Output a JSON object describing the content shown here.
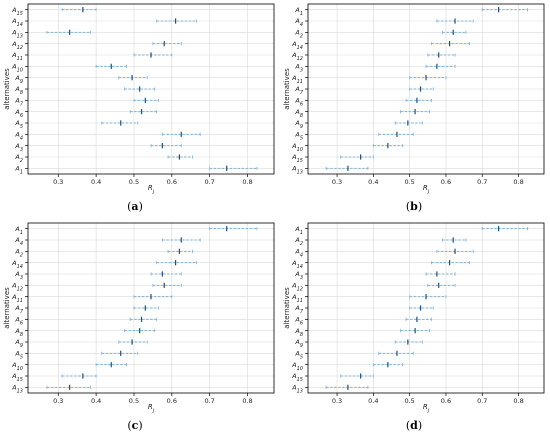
{
  "chart_data": [
    {
      "type": "scatter",
      "caption": "(a)",
      "xlabel": "R_j",
      "ylabel": "alternatives",
      "xlim": [
        0.22,
        0.87
      ],
      "xticks": [
        "0.3",
        "0.4",
        "0.5",
        "0.6",
        "0.7",
        "0.8"
      ],
      "grid": true,
      "categories": [
        "A15",
        "A14",
        "A13",
        "A12",
        "A11",
        "A10",
        "A9",
        "A8",
        "A7",
        "A6",
        "A5",
        "A4",
        "A3",
        "A2",
        "A1"
      ],
      "values": [
        0.365,
        0.61,
        0.33,
        0.58,
        0.545,
        0.44,
        0.495,
        0.515,
        0.53,
        0.52,
        0.465,
        0.625,
        0.575,
        0.62,
        0.745
      ],
      "lower": [
        0.31,
        0.56,
        0.27,
        0.55,
        0.5,
        0.4,
        0.46,
        0.475,
        0.5,
        0.49,
        0.415,
        0.575,
        0.545,
        0.59,
        0.7
      ],
      "upper": [
        0.4,
        0.665,
        0.385,
        0.625,
        0.6,
        0.48,
        0.535,
        0.555,
        0.565,
        0.56,
        0.51,
        0.675,
        0.625,
        0.655,
        0.825
      ]
    },
    {
      "type": "scatter",
      "caption": "(b)",
      "xlabel": "R_j",
      "ylabel": "alternatives",
      "xlim": [
        0.22,
        0.87
      ],
      "xticks": [
        "0.3",
        "0.4",
        "0.5",
        "0.6",
        "0.7",
        "0.8"
      ],
      "grid": true,
      "categories": [
        "A1",
        "A4",
        "A2",
        "A14",
        "A12",
        "A3",
        "A11",
        "A7",
        "A6",
        "A8",
        "A9",
        "A5",
        "A10",
        "A15",
        "A13"
      ],
      "values": [
        0.745,
        0.625,
        0.62,
        0.61,
        0.58,
        0.575,
        0.545,
        0.53,
        0.52,
        0.515,
        0.495,
        0.465,
        0.44,
        0.365,
        0.33
      ],
      "lower": [
        0.7,
        0.575,
        0.59,
        0.56,
        0.55,
        0.545,
        0.5,
        0.5,
        0.49,
        0.475,
        0.46,
        0.415,
        0.4,
        0.31,
        0.27
      ],
      "upper": [
        0.825,
        0.675,
        0.655,
        0.665,
        0.625,
        0.625,
        0.6,
        0.565,
        0.56,
        0.555,
        0.535,
        0.51,
        0.48,
        0.4,
        0.385
      ]
    },
    {
      "type": "scatter",
      "caption": "(c)",
      "xlabel": "R_j",
      "ylabel": "alternatives",
      "xlim": [
        0.22,
        0.87
      ],
      "xticks": [
        "0.3",
        "0.4",
        "0.5",
        "0.6",
        "0.7",
        "0.8"
      ],
      "grid": true,
      "categories": [
        "A1",
        "A4",
        "A2",
        "A14",
        "A3",
        "A12",
        "A11",
        "A7",
        "A6",
        "A8",
        "A9",
        "A5",
        "A10",
        "A15",
        "A13"
      ],
      "values": [
        0.745,
        0.625,
        0.62,
        0.61,
        0.575,
        0.58,
        0.545,
        0.53,
        0.52,
        0.515,
        0.495,
        0.465,
        0.44,
        0.365,
        0.33
      ],
      "lower": [
        0.7,
        0.575,
        0.59,
        0.56,
        0.545,
        0.55,
        0.5,
        0.5,
        0.49,
        0.475,
        0.46,
        0.415,
        0.4,
        0.31,
        0.27
      ],
      "upper": [
        0.825,
        0.675,
        0.655,
        0.665,
        0.625,
        0.625,
        0.6,
        0.565,
        0.56,
        0.555,
        0.535,
        0.51,
        0.48,
        0.4,
        0.385
      ]
    },
    {
      "type": "scatter",
      "caption": "(d)",
      "xlabel": "R_j",
      "ylabel": "alternatives",
      "xlim": [
        0.22,
        0.87
      ],
      "xticks": [
        "0.3",
        "0.4",
        "0.5",
        "0.6",
        "0.7",
        "0.8"
      ],
      "grid": true,
      "categories": [
        "A1",
        "A2",
        "A4",
        "A14",
        "A3",
        "A12",
        "A11",
        "A7",
        "A6",
        "A8",
        "A9",
        "A5",
        "A10",
        "A15",
        "A13"
      ],
      "values": [
        0.745,
        0.62,
        0.625,
        0.61,
        0.575,
        0.58,
        0.545,
        0.53,
        0.52,
        0.515,
        0.495,
        0.465,
        0.44,
        0.365,
        0.33
      ],
      "lower": [
        0.7,
        0.59,
        0.575,
        0.56,
        0.545,
        0.55,
        0.5,
        0.5,
        0.49,
        0.475,
        0.46,
        0.415,
        0.4,
        0.31,
        0.27
      ],
      "upper": [
        0.825,
        0.655,
        0.675,
        0.665,
        0.625,
        0.625,
        0.6,
        0.565,
        0.56,
        0.555,
        0.535,
        0.51,
        0.48,
        0.4,
        0.385
      ]
    }
  ],
  "colors": {
    "marker": "#1f4e79",
    "errorbar": "#7fb2d6",
    "grid": "#d9d9d9",
    "axis": "#000000"
  }
}
